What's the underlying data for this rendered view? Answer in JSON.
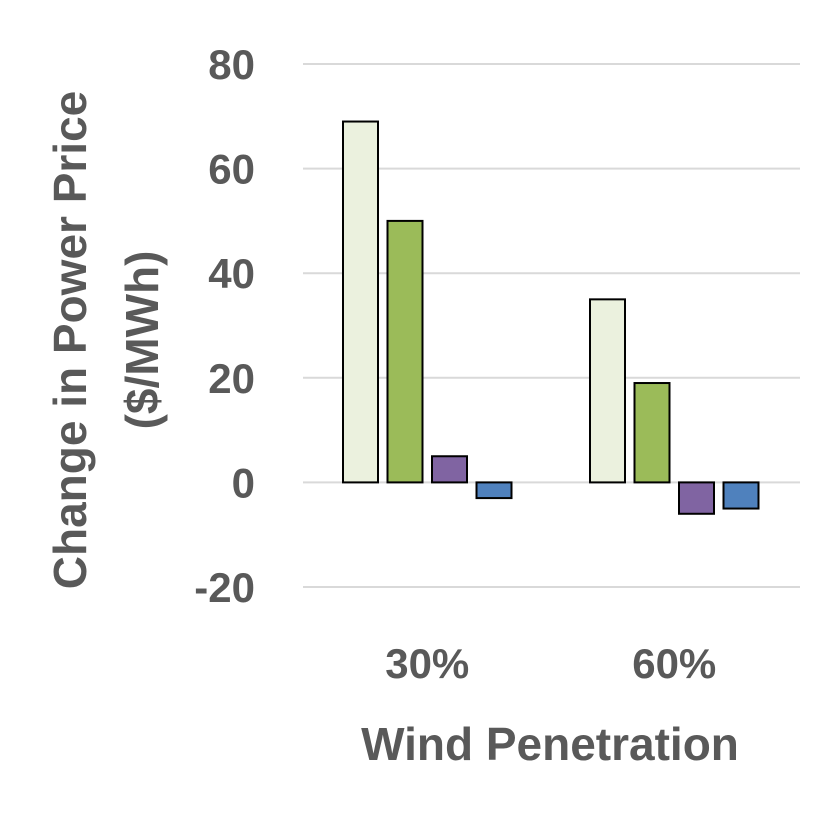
{
  "chart_data": {
    "type": "bar",
    "title": "",
    "xlabel": "Wind Penetration",
    "ylabel_line1": "Change in Power Price",
    "ylabel_line2": "($/MWh)",
    "categories": [
      "30%",
      "60%"
    ],
    "ylim": [
      -20,
      80
    ],
    "yticks": [
      80,
      60,
      40,
      20,
      0,
      -20
    ],
    "ytick_labels": [
      "80",
      "60",
      "40",
      "20",
      "0",
      "-20"
    ],
    "grid": true,
    "legend": "none",
    "series": [
      {
        "values": [
          69,
          35
        ],
        "color": "#ebf1de"
      },
      {
        "values": [
          50,
          19
        ],
        "color": "#9bbb59"
      },
      {
        "values": [
          5,
          -6
        ],
        "color": "#8064a2"
      },
      {
        "values": [
          -3,
          -5
        ],
        "color": "#4f81bd"
      }
    ]
  },
  "colors": {
    "axis_text": "#595959",
    "gridline": "#d9d9d9",
    "bar_outline": "#000000"
  }
}
